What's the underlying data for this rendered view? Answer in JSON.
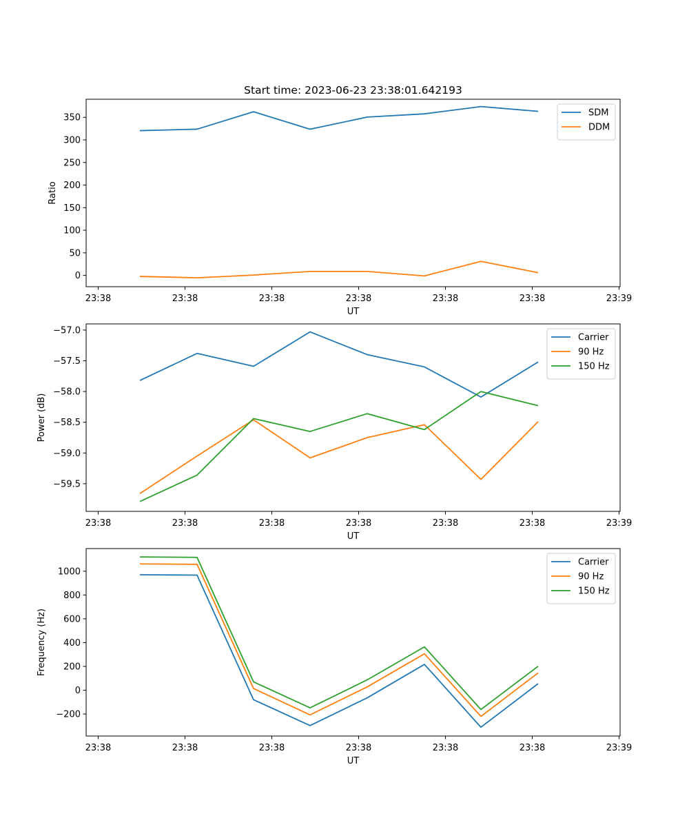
{
  "chart_data": [
    {
      "type": "line",
      "title": "Start time: 2023-06-23 23:38:01.642193",
      "xlabel": "UT",
      "ylabel": "Ratio",
      "xtick_labels": [
        "23:38",
        "23:38",
        "23:38",
        "23:38",
        "23:38",
        "23:38",
        "23:39"
      ],
      "ylim": [
        -25,
        390
      ],
      "yticks": [
        0,
        50,
        100,
        150,
        200,
        250,
        300,
        350
      ],
      "ytick_labels": [
        "0",
        "50",
        "100",
        "150",
        "200",
        "250",
        "300",
        "350"
      ],
      "grid": false,
      "legend": "top-right",
      "series": [
        {
          "name": "SDM",
          "color": "#1f77b4",
          "values": [
            320.5,
            323.7,
            362.3,
            323.6,
            350.5,
            357.7,
            373.8,
            363.2
          ]
        },
        {
          "name": "DDM",
          "color": "#ff7f0e",
          "values": [
            -2.2,
            -5.3,
            0.8,
            8.7,
            8.8,
            -1.2,
            31.1,
            6.1
          ]
        }
      ]
    },
    {
      "type": "line",
      "title": "",
      "xlabel": "UT",
      "ylabel": "Power (dB)",
      "xtick_labels": [
        "23:38",
        "23:38",
        "23:38",
        "23:38",
        "23:38",
        "23:38",
        "23:39"
      ],
      "ylim": [
        -59.95,
        -56.9
      ],
      "yticks": [
        -59.5,
        -59.0,
        -58.5,
        -58.0,
        -57.5,
        -57.0
      ],
      "ytick_labels": [
        "−59.5",
        "−59.0",
        "−58.5",
        "−58.0",
        "−57.5",
        "−57.0"
      ],
      "grid": false,
      "legend": "top-right",
      "series": [
        {
          "name": "Carrier",
          "color": "#1f77b4",
          "values": [
            -57.82,
            -57.38,
            -57.59,
            -57.03,
            -57.4,
            -57.6,
            -58.09,
            -57.52
          ]
        },
        {
          "name": "90 Hz",
          "color": "#ff7f0e",
          "values": [
            -59.66,
            -59.05,
            -58.46,
            -59.08,
            -58.75,
            -58.54,
            -59.43,
            -58.49
          ]
        },
        {
          "name": "150 Hz",
          "color": "#2ca02c",
          "values": [
            -59.79,
            -59.36,
            -58.44,
            -58.65,
            -58.36,
            -58.62,
            -58.0,
            -58.23
          ]
        }
      ]
    },
    {
      "type": "line",
      "title": "",
      "xlabel": "UT",
      "ylabel": "Frequency (Hz)",
      "xtick_labels": [
        "23:38",
        "23:38",
        "23:38",
        "23:38",
        "23:38",
        "23:38",
        "23:39"
      ],
      "ylim": [
        -385,
        1190
      ],
      "yticks": [
        -200,
        0,
        200,
        400,
        600,
        800,
        1000
      ],
      "ytick_labels": [
        "−200",
        "0",
        "200",
        "400",
        "600",
        "800",
        "1000"
      ],
      "grid": false,
      "legend": "top-right",
      "series": [
        {
          "name": "Carrier",
          "color": "#1f77b4",
          "values": [
            970,
            967,
            -80,
            -297,
            -64,
            217,
            -311,
            55
          ]
        },
        {
          "name": "90 Hz",
          "color": "#ff7f0e",
          "values": [
            1061,
            1058,
            14,
            -207,
            28,
            306,
            -220,
            145
          ]
        },
        {
          "name": "150 Hz",
          "color": "#2ca02c",
          "values": [
            1120,
            1116,
            70,
            -148,
            87,
            364,
            -162,
            201
          ]
        }
      ]
    }
  ]
}
